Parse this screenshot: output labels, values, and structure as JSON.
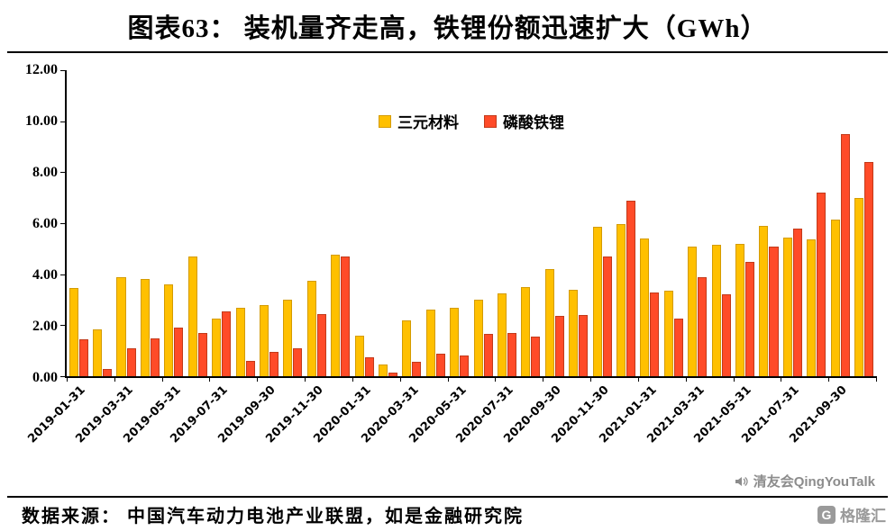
{
  "watermark": "清友会QingYouTalk",
  "source": "数据来源： 中国汽车动力电池产业联盟，如是金融研究院",
  "logo": {
    "text": "格隆汇",
    "icon_letter": "G"
  },
  "chart_data": {
    "type": "bar",
    "title": "图表63： 装机量齐走高，铁锂份额迅速扩大（GWh）",
    "xlabel": "",
    "ylabel": "",
    "ylim": [
      0,
      12
    ],
    "y_ticks": [
      "0.00",
      "2.00",
      "4.00",
      "6.00",
      "8.00",
      "10.00",
      "12.00"
    ],
    "label_every": 2,
    "grid": "off",
    "legend_position": "top-center-inside",
    "x_tick_labels": [
      "2019-01-31",
      "2019-03-31",
      "2019-05-31",
      "2019-07-31",
      "2019-09-30",
      "2019-11-30",
      "2020-01-31",
      "2020-03-31",
      "2020-05-31",
      "2020-07-31",
      "2020-09-30",
      "2020-11-30",
      "2021-01-31",
      "2021-03-31",
      "2021-05-31",
      "2021-07-31",
      "2021-09-30"
    ],
    "series": [
      {
        "key": "ncm",
        "name": "三元材料",
        "color": "#FFC000",
        "border": "#D49B00",
        "values": [
          3.45,
          1.85,
          3.9,
          3.8,
          3.6,
          4.7,
          2.25,
          2.7,
          2.8,
          3.0,
          3.75,
          4.75,
          1.6,
          0.45,
          2.2,
          2.6,
          2.7,
          3.0,
          3.25,
          3.5,
          4.2,
          3.4,
          5.85,
          5.95,
          5.4,
          3.35,
          5.1,
          5.15,
          5.2,
          5.9,
          5.45,
          5.35,
          6.15,
          7.0
        ]
      },
      {
        "key": "lfp",
        "name": "磷酸铁锂",
        "color": "#FF4B28",
        "border": "#C23A1A",
        "values": [
          1.45,
          0.3,
          1.1,
          1.5,
          1.9,
          1.7,
          2.55,
          0.6,
          0.95,
          1.1,
          2.45,
          4.7,
          0.75,
          0.15,
          0.55,
          0.9,
          0.8,
          1.65,
          1.7,
          1.55,
          2.35,
          2.4,
          4.7,
          6.9,
          3.3,
          2.25,
          3.9,
          3.2,
          4.5,
          5.1,
          5.8,
          7.2,
          9.5,
          8.4
        ]
      }
    ]
  }
}
